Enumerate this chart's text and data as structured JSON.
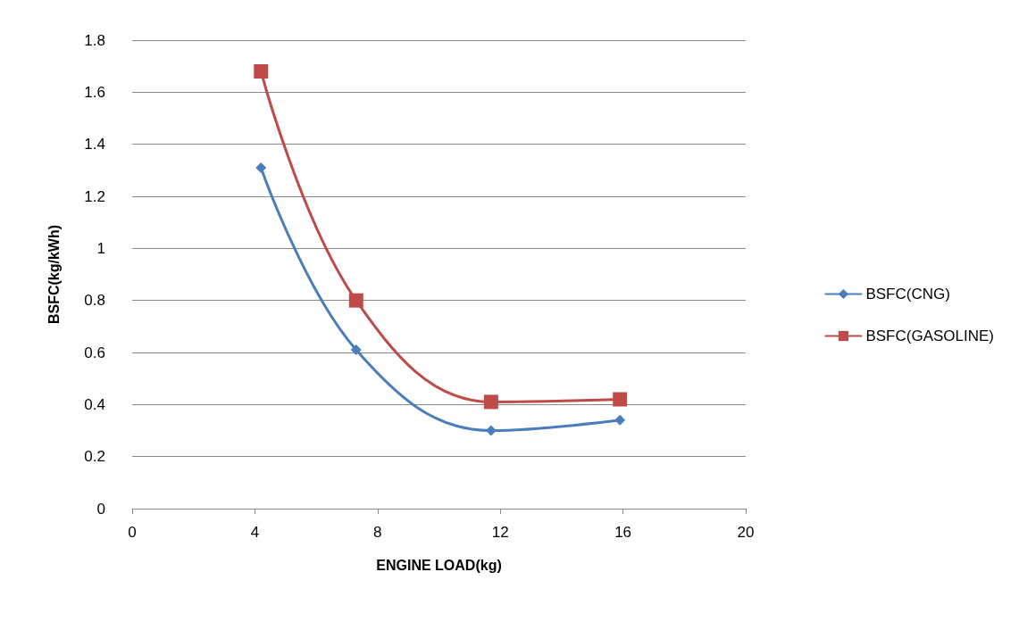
{
  "chart_data": {
    "type": "line",
    "xlabel": "ENGINE LOAD(kg)",
    "ylabel": "BSFC(kg/kWh)",
    "xlim": [
      0,
      20
    ],
    "xticks": [
      0,
      4,
      8,
      12,
      16,
      20
    ],
    "ylim": [
      0,
      1.8
    ],
    "yticks": [
      0,
      0.2,
      0.4,
      0.6,
      0.8,
      1,
      1.2,
      1.4,
      1.6,
      1.8
    ],
    "grid": "y",
    "legend": "right",
    "series": [
      {
        "name": "BSFC(CNG)",
        "color": "#4a7ebb",
        "marker": "diamond",
        "x": [
          4.2,
          7.3,
          11.7,
          15.9
        ],
        "values": [
          1.31,
          0.61,
          0.3,
          0.34
        ]
      },
      {
        "name": "BSFC(GASOLINE)",
        "color": "#be4b48",
        "marker": "square",
        "x": [
          4.2,
          7.3,
          11.7,
          15.9
        ],
        "values": [
          1.68,
          0.8,
          0.41,
          0.42
        ]
      }
    ]
  }
}
